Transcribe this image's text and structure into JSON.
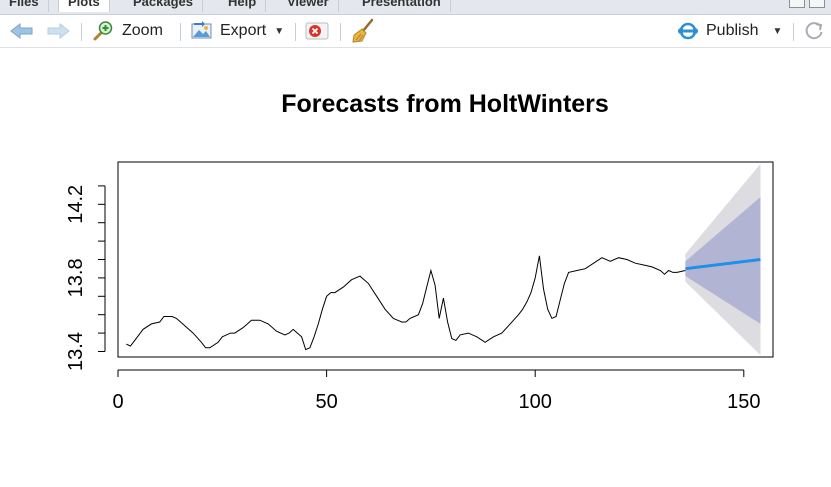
{
  "tabs": [
    {
      "label": "Files"
    },
    {
      "label": "Plots"
    },
    {
      "label": "Packages"
    },
    {
      "label": "Help"
    },
    {
      "label": "Viewer"
    },
    {
      "label": "Presentation"
    }
  ],
  "toolbar": {
    "zoom_label": "Zoom",
    "export_label": "Export",
    "publish_label": "Publish"
  },
  "colors": {
    "forecast_line": "#1e90e6",
    "inner_band": "#b1b5d3",
    "outer_band": "#dcdce1",
    "accent": "#2b8fd4"
  },
  "chart_data": {
    "type": "line",
    "title": "Forecasts from HoltWinters",
    "xlabel": "",
    "ylabel": "",
    "xlim": [
      0,
      157
    ],
    "ylim": [
      13.37,
      14.43
    ],
    "x_ticks": [
      0,
      50,
      100,
      150
    ],
    "y_ticks": [
      "13.4",
      "13.8",
      "14.2"
    ],
    "series": [
      {
        "role": "observed",
        "x": [
          2,
          3,
          4,
          5,
          6,
          8,
          10,
          11,
          12,
          13,
          14,
          15,
          16,
          18,
          20,
          21,
          22,
          24,
          25,
          27,
          28,
          30,
          32,
          34,
          36,
          38,
          39,
          40,
          41,
          42,
          44,
          45,
          46,
          47,
          48,
          49,
          50,
          51,
          52,
          54,
          56,
          58,
          60,
          62,
          64,
          66,
          67,
          68,
          69,
          70,
          72,
          73,
          74,
          75,
          76,
          77,
          78,
          79,
          80,
          81,
          82,
          84,
          86,
          88,
          90,
          92,
          94,
          96,
          97,
          98,
          99,
          100,
          101,
          102,
          103,
          104,
          105,
          106,
          107,
          108,
          110,
          112,
          114,
          116,
          118,
          120,
          122,
          124,
          126,
          128,
          130,
          131,
          132,
          133,
          134,
          136
        ],
        "y": [
          13.44,
          13.43,
          13.46,
          13.49,
          13.52,
          13.55,
          13.56,
          13.59,
          13.59,
          13.59,
          13.58,
          13.56,
          13.54,
          13.5,
          13.45,
          13.42,
          13.42,
          13.45,
          13.48,
          13.5,
          13.5,
          13.53,
          13.57,
          13.57,
          13.55,
          13.51,
          13.5,
          13.49,
          13.5,
          13.52,
          13.48,
          13.41,
          13.42,
          13.48,
          13.55,
          13.63,
          13.7,
          13.72,
          13.72,
          13.75,
          13.79,
          13.81,
          13.77,
          13.7,
          13.63,
          13.58,
          13.57,
          13.56,
          13.56,
          13.58,
          13.6,
          13.66,
          13.75,
          13.84,
          13.76,
          13.58,
          13.69,
          13.56,
          13.47,
          13.46,
          13.49,
          13.5,
          13.48,
          13.45,
          13.48,
          13.5,
          13.55,
          13.6,
          13.63,
          13.67,
          13.72,
          13.8,
          13.92,
          13.74,
          13.63,
          13.58,
          13.59,
          13.68,
          13.77,
          13.83,
          13.84,
          13.85,
          13.88,
          13.91,
          13.89,
          13.91,
          13.9,
          13.88,
          13.87,
          13.86,
          13.84,
          13.82,
          13.84,
          13.83,
          13.83,
          13.84
        ]
      },
      {
        "role": "forecast",
        "x": [
          136,
          154
        ],
        "y": [
          13.85,
          13.9
        ]
      },
      {
        "role": "band-80",
        "x": [
          136,
          154
        ],
        "lower": [
          13.81,
          13.55
        ],
        "upper": [
          13.89,
          14.24
        ]
      },
      {
        "role": "band-95",
        "x": [
          136,
          154
        ],
        "lower": [
          13.78,
          13.38
        ],
        "upper": [
          13.93,
          14.42
        ]
      }
    ]
  }
}
